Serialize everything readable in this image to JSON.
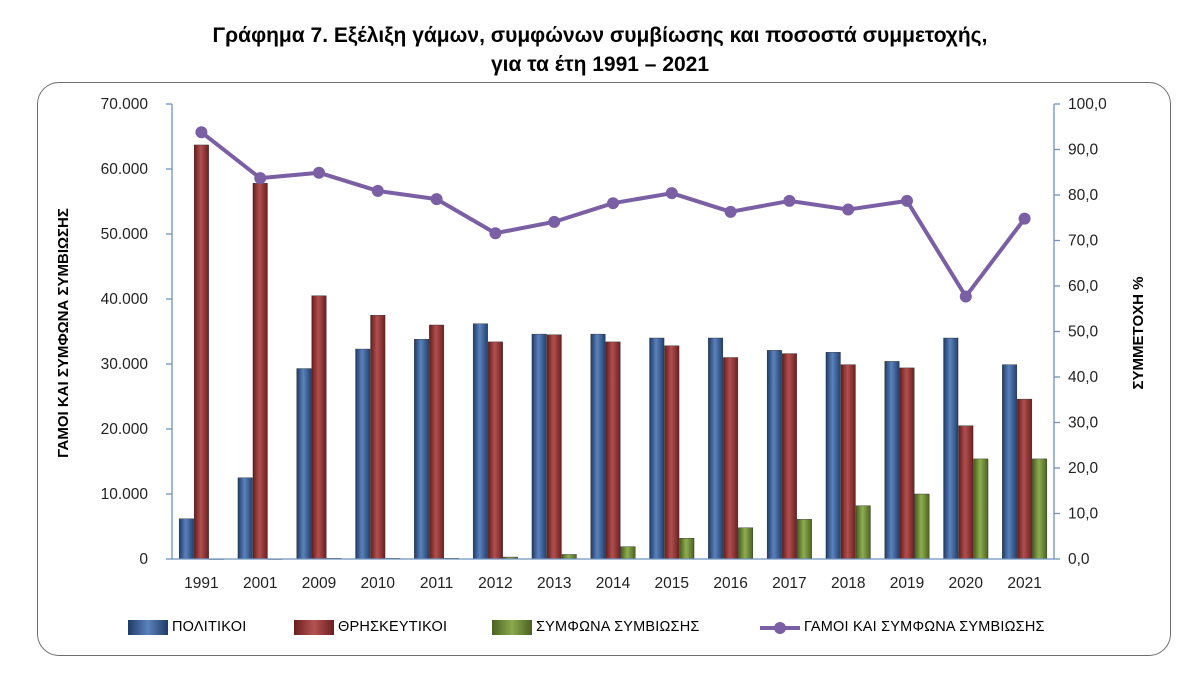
{
  "title_line1": "Γράφημα 7. Εξέλιξη γάμων, συμφώνων συμβίωσης και ποσοστά συμμετοχής,",
  "title_line2": "για τα έτη 1991 – 2021",
  "colors": {
    "civil": "#3d5f95",
    "religious": "#8f3535",
    "cohabitation": "#6f8c38",
    "share": "#7b5fa4",
    "axis": "#6f93be"
  },
  "chart_data": {
    "type": "bar",
    "categories": [
      "1991",
      "2001",
      "2009",
      "2010",
      "2011",
      "2012",
      "2013",
      "2014",
      "2015",
      "2016",
      "2017",
      "2018",
      "2019",
      "2020",
      "2021"
    ],
    "series": [
      {
        "name": "ΠΟΛΙΤΙΚΟΙ",
        "axis": "left",
        "values": [
          6200,
          12500,
          29300,
          32300,
          33800,
          36200,
          34600,
          34600,
          34000,
          34000,
          32100,
          31800,
          30400,
          34000,
          29900
        ]
      },
      {
        "name": "ΘΡΗΣΚΕΥΤΙΚΟΙ",
        "axis": "left",
        "values": [
          63700,
          57800,
          40500,
          37500,
          36000,
          33400,
          34500,
          33400,
          32800,
          31000,
          31600,
          29900,
          29400,
          20500,
          24600
        ]
      },
      {
        "name": "ΣΥΜΦΩΝΑ ΣΥΜΒΙΩΣΗΣ",
        "axis": "left",
        "values": [
          0,
          0,
          100,
          100,
          100,
          300,
          700,
          1900,
          3200,
          4800,
          6100,
          8200,
          10000,
          15400,
          15400
        ]
      },
      {
        "name": "ΓΑΜΟΙ ΚΑΙ ΣΥΜΦΩΝΑ ΣΥΜΒΙΩΣΗΣ",
        "type": "line",
        "axis": "right",
        "values": [
          93.8,
          83.7,
          84.9,
          80.9,
          79.1,
          71.6,
          74.1,
          78.2,
          80.4,
          76.3,
          78.7,
          76.8,
          78.7,
          57.7,
          74.8
        ]
      }
    ],
    "ylabel_left": "ΓΑΜΟΙ ΚΑΙ ΣΥΜΦΩΝΑ ΣΥΜΒΙΩΣΗΣ",
    "ylabel_right": "ΣΥΜΜΕΤΟΧΗ %",
    "ylim_left": [
      0,
      70000
    ],
    "ylim_right": [
      0,
      100
    ],
    "yticks_left": [
      "0",
      "10.000",
      "20.000",
      "30.000",
      "40.000",
      "50.000",
      "60.000",
      "70.000"
    ],
    "yticks_right": [
      "0,0",
      "10,0",
      "20,0",
      "30,0",
      "40,0",
      "50,0",
      "60,0",
      "70,0",
      "80,0",
      "90,0",
      "100,0"
    ],
    "grid": false,
    "legend": "bottom"
  }
}
